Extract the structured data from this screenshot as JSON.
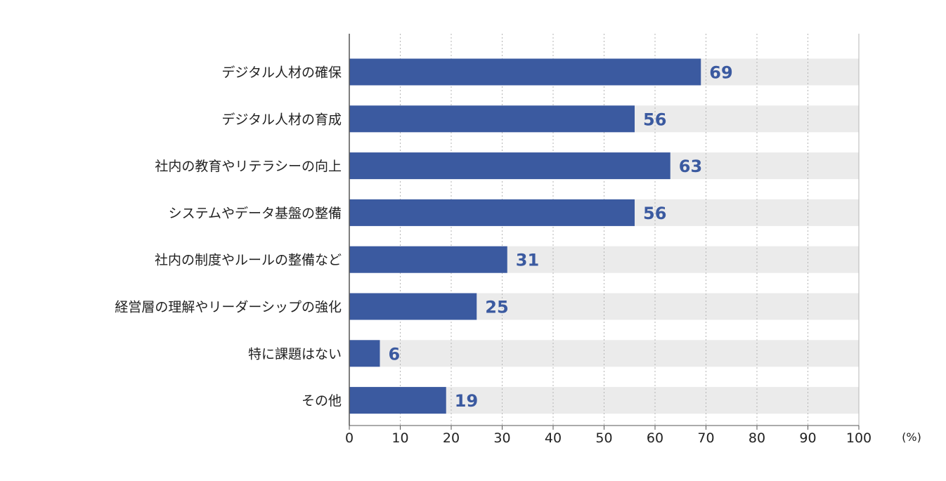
{
  "chart_data": {
    "type": "bar",
    "orientation": "horizontal",
    "categories": [
      "デジタル人材の確保",
      "デジタル人材の育成",
      "社内の教育やリテラシーの向上",
      "システムやデータ基盤の整備",
      "社内の制度やルールの整備など",
      "経営層の理解やリーダーシップの強化",
      "特に課題はない",
      "その他"
    ],
    "values": [
      69,
      56,
      63,
      56,
      31,
      25,
      6,
      19
    ],
    "value_labels": [
      "69",
      "56",
      "63",
      "56",
      "31",
      "25",
      "6",
      "19"
    ],
    "xlim": [
      0,
      100
    ],
    "x_ticks": [
      "0",
      "10",
      "20",
      "30",
      "40",
      "50",
      "60",
      "70",
      "80",
      "90",
      "100"
    ],
    "x_unit": "(%)",
    "grid": "vertical-dotted",
    "colors": {
      "bar": "#3b5aa0",
      "track": "#ebebeb",
      "value_label": "#3b5aa0",
      "grid": "#b5b5b5",
      "axis": "#555555",
      "text": "#222222"
    }
  }
}
